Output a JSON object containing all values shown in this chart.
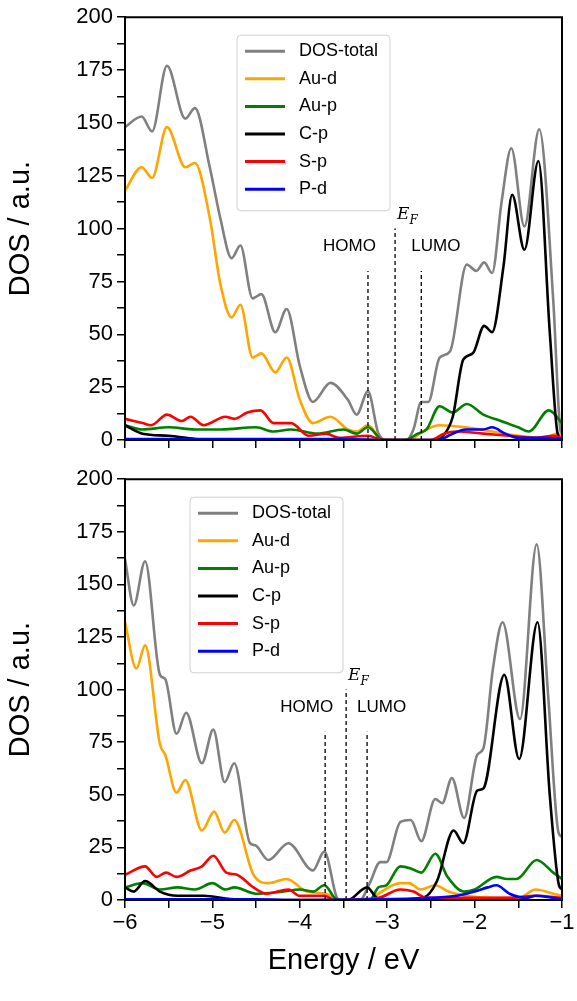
{
  "chart_data": [
    {
      "type": "line",
      "ylabel": "DOS / a.u.",
      "xlim": [
        -6,
        -1
      ],
      "ylim": [
        0,
        200
      ],
      "xticks": [
        -6,
        -5.5,
        -5,
        -4.5,
        -4,
        -3.5,
        -3,
        -2.5,
        -2,
        -1.5,
        -1
      ],
      "yticks": [
        0,
        {
          "value": 12.5,
          "label": null
        },
        25,
        {
          "value": 37.5,
          "label": null
        },
        50,
        {
          "value": 62.5,
          "label": null
        },
        75,
        {
          "value": 87.5,
          "label": null
        },
        100,
        {
          "value": 112.5,
          "label": null
        },
        125,
        {
          "value": 137.5,
          "label": null
        },
        150,
        {
          "value": 162.5,
          "label": null
        },
        175,
        {
          "value": 187.5,
          "label": null
        },
        200
      ],
      "tick_labels": "y",
      "grid": false,
      "legend": "top",
      "series": [
        {
          "name": "DOS-total",
          "color": "#808080",
          "x": [
            -6,
            -5.81,
            -5.69,
            -5.52,
            -5.31,
            -5.2,
            -5.03,
            -4.91,
            -4.78,
            -4.68,
            -4.54,
            -4.44,
            -4.28,
            -4.15,
            -4.0,
            -3.85,
            -3.65,
            -3.45,
            -3.35,
            -3.22,
            -3.1,
            -3.0,
            -2.78,
            -2.7,
            -2.61,
            -2.53,
            -2.4,
            -2.28,
            -2.09,
            -1.98,
            -1.89,
            -1.8,
            -1.69,
            -1.58,
            -1.43,
            -1.26,
            -1.1,
            -1.02,
            -1
          ],
          "values": [
            148,
            153,
            146,
            177,
            152,
            157,
            129,
            105,
            86,
            92,
            67,
            69,
            51,
            62,
            35,
            18,
            27,
            19,
            12,
            23,
            3,
            0,
            0,
            5,
            18,
            18,
            39,
            42,
            83,
            80,
            84,
            79,
            113,
            138,
            101,
            147,
            66,
            5,
            3
          ]
        },
        {
          "name": "Au-d",
          "color": "#ffa500",
          "x": [
            -6,
            -5.81,
            -5.69,
            -5.52,
            -5.31,
            -5.2,
            -5.03,
            -4.91,
            -4.78,
            -4.68,
            -4.54,
            -4.44,
            -4.28,
            -4.15,
            -4.0,
            -3.85,
            -3.65,
            -3.45,
            -3.35,
            -3.22,
            -3.05,
            -2.75,
            -2.6,
            -2.4,
            -2.1,
            -1.8,
            -1.5,
            -1.2,
            -1.05,
            -1
          ],
          "values": [
            118,
            129,
            124,
            148,
            129,
            131,
            105,
            74,
            58,
            64,
            39,
            41,
            32,
            39,
            19,
            8,
            11,
            5,
            4,
            7,
            0,
            0,
            4,
            7,
            6,
            4,
            2,
            1,
            3,
            2
          ]
        },
        {
          "name": "Au-p",
          "color": "#008000",
          "x": [
            -6,
            -5.8,
            -5.5,
            -5.2,
            -4.9,
            -4.5,
            -4.3,
            -4.1,
            -3.8,
            -3.5,
            -3.35,
            -3.22,
            -3.05,
            -2.8,
            -2.65,
            -2.55,
            -2.4,
            -2.25,
            -2.09,
            -1.9,
            -1.7,
            -1.5,
            -1.38,
            -1.15,
            -1
          ],
          "values": [
            7,
            5,
            6,
            5,
            5,
            6,
            4,
            5,
            3,
            5,
            3,
            6,
            0,
            0,
            3,
            5,
            16,
            13,
            17,
            12,
            9,
            6,
            4,
            14,
            8
          ]
        },
        {
          "name": "C-p",
          "color": "#000000",
          "x": [
            -6,
            -5.8,
            -5.5,
            -5.2,
            -4.8,
            -2.45,
            -2.36,
            -2.25,
            -2.13,
            -2.02,
            -1.89,
            -1.8,
            -1.67,
            -1.57,
            -1.43,
            -1.27,
            -1.14,
            -1.05,
            -1
          ],
          "values": [
            7,
            3,
            2,
            0.5,
            0,
            0,
            2,
            11,
            38,
            41,
            54,
            51,
            82,
            116,
            90,
            132,
            51,
            3,
            0
          ]
        },
        {
          "name": "S-p",
          "color": "#ff0000",
          "x": [
            -6,
            -5.8,
            -5.7,
            -5.52,
            -5.35,
            -5.25,
            -5.1,
            -4.85,
            -4.75,
            -4.6,
            -4.45,
            -4.3,
            -4.1,
            -3.9,
            -3.7,
            -3.55,
            -3.22,
            -3.05,
            -2.5,
            -2.35,
            -2.2,
            -1.9,
            -1.6,
            -1.3,
            -1.1,
            -1
          ],
          "values": [
            10,
            8,
            7,
            12,
            9,
            11,
            7,
            11,
            10,
            13,
            14,
            8,
            8,
            2,
            3,
            1,
            2,
            0,
            0,
            3,
            4,
            3,
            2,
            1,
            2,
            1
          ]
        },
        {
          "name": "P-d",
          "color": "#0000ff",
          "x": [
            -6,
            -3.5,
            -3.0,
            -2.4,
            -2.3,
            -2.1,
            -1.9,
            -1.8,
            -1.65,
            -1.5,
            -1.2,
            -1
          ],
          "values": [
            0.5,
            0.5,
            0,
            0,
            2,
            5,
            5,
            6,
            3,
            1,
            1,
            0.5
          ]
        }
      ],
      "ref_lines": [
        {
          "axis": "x",
          "value": -3.22,
          "label": "HOMO",
          "color": "#000000",
          "line_style": "dashed"
        },
        {
          "axis": "x",
          "value": -2.91,
          "label": "E$_{F}$",
          "color": "#000000",
          "line_style": "dashed"
        },
        {
          "axis": "x",
          "value": -2.61,
          "label": "LUMO",
          "color": "#000000",
          "line_style": "dashed"
        }
      ]
    },
    {
      "type": "line",
      "xlabel": "Energy / eV",
      "ylabel": "DOS / a.u.",
      "xlim": [
        -6,
        -1
      ],
      "ylim": [
        0,
        200
      ],
      "xticks": [
        {
          "value": -6,
          "label": "−6"
        },
        {
          "value": -5.5,
          "label": null
        },
        {
          "value": -5,
          "label": "−5"
        },
        {
          "value": -4.5,
          "label": null
        },
        {
          "value": -4,
          "label": "−4"
        },
        {
          "value": -3.5,
          "label": null
        },
        {
          "value": -3,
          "label": "−3"
        },
        {
          "value": -2.5,
          "label": null
        },
        {
          "value": -2,
          "label": "−2"
        },
        {
          "value": -1.5,
          "label": null
        },
        {
          "value": -1,
          "label": "−1"
        }
      ],
      "yticks": [
        0,
        {
          "value": 12.5,
          "label": null
        },
        25,
        {
          "value": 37.5,
          "label": null
        },
        50,
        {
          "value": 62.5,
          "label": null
        },
        75,
        {
          "value": 87.5,
          "label": null
        },
        100,
        {
          "value": 112.5,
          "label": null
        },
        125,
        {
          "value": 137.5,
          "label": null
        },
        150,
        {
          "value": 162.5,
          "label": null
        },
        175,
        {
          "value": 187.5,
          "label": null
        },
        200
      ],
      "grid": false,
      "legend": "top left",
      "series": [
        {
          "name": "DOS-total",
          "color": "#808080",
          "x": [
            -6,
            -5.9,
            -5.77,
            -5.6,
            -5.54,
            -5.41,
            -5.3,
            -5.12,
            -4.99,
            -4.86,
            -4.75,
            -4.57,
            -4.51,
            -4.36,
            -4.13,
            -3.85,
            -3.72,
            -3.58,
            -3.55,
            -3.31,
            -3.2,
            -3.08,
            -3.01,
            -2.85,
            -2.73,
            -2.61,
            -2.45,
            -2.37,
            -2.26,
            -2.12,
            -1.97,
            -1.9,
            -1.79,
            -1.68,
            -1.48,
            -1.29,
            -1.16,
            -1.04,
            -1
          ],
          "values": [
            162,
            140,
            161,
            107,
            105,
            79,
            89,
            65,
            81,
            56,
            65,
            27,
            26,
            19,
            27,
            14,
            23,
            1.5,
            0,
            0,
            8,
            18,
            18,
            37,
            38,
            28,
            48,
            46,
            58,
            39,
            69,
            72,
            110,
            132,
            86,
            169,
            98,
            32,
            30
          ]
        },
        {
          "name": "Au-d",
          "color": "#ffa500",
          "x": [
            -6,
            -5.87,
            -5.77,
            -5.6,
            -5.54,
            -5.41,
            -5.31,
            -5.12,
            -4.98,
            -4.86,
            -4.75,
            -4.53,
            -4.36,
            -4.15,
            -3.92,
            -3.7,
            -3.55,
            -3.2,
            -3.1,
            -2.85,
            -2.75,
            -2.62,
            -2.45,
            -2.3,
            -2.1,
            -1.8,
            -1.5,
            -1.3,
            -1.1,
            -1
          ],
          "values": [
            132,
            110,
            121,
            74,
            69,
            51,
            57,
            33,
            42,
            32,
            38,
            12,
            8,
            10,
            4,
            3,
            0,
            0,
            3,
            8,
            8,
            5,
            7,
            4,
            2,
            1,
            1,
            5,
            3,
            2
          ]
        },
        {
          "name": "Au-p",
          "color": "#008000",
          "x": [
            -6,
            -5.8,
            -5.6,
            -5.4,
            -5.2,
            -5.0,
            -4.85,
            -4.75,
            -4.5,
            -4.2,
            -4.0,
            -3.85,
            -3.72,
            -3.6,
            -3.55,
            -3.2,
            -3.1,
            -3.01,
            -2.85,
            -2.73,
            -2.61,
            -2.45,
            -2.31,
            -2.12,
            -2.0,
            -1.75,
            -1.63,
            -1.52,
            -1.29,
            -1.1,
            -1
          ],
          "values": [
            6,
            8,
            5,
            6,
            5,
            8,
            5,
            6,
            3,
            4,
            5,
            4,
            7,
            1,
            0,
            0,
            6,
            7,
            16,
            15,
            13,
            22,
            11,
            4,
            5,
            11,
            10,
            10,
            19,
            13,
            10
          ]
        },
        {
          "name": "C-p",
          "color": "#000000",
          "x": [
            -6,
            -5.9,
            -5.77,
            -5.6,
            -5.4,
            -5.1,
            -4.8,
            -4.5,
            -3.45,
            -3.23,
            -3.12,
            -3.0,
            -2.59,
            -2.43,
            -2.24,
            -2.13,
            -1.97,
            -1.9,
            -1.66,
            -1.49,
            -1.28,
            -1.14,
            -1.04,
            -1
          ],
          "values": [
            6,
            4,
            9,
            4,
            2,
            2,
            0.5,
            0,
            0,
            6,
            1,
            0,
            1,
            9,
            33,
            27,
            52,
            53,
            107,
            67,
            132,
            50,
            8,
            5
          ]
        },
        {
          "name": "S-p",
          "color": "#ff0000",
          "x": [
            -6,
            -5.77,
            -5.64,
            -5.53,
            -5.41,
            -5.25,
            -5.12,
            -4.99,
            -4.84,
            -4.72,
            -4.53,
            -4.38,
            -4.13,
            -4.0,
            -3.72,
            -3.6,
            -3.1,
            -2.85,
            -2.7,
            -2.55,
            -2.3,
            -2.0,
            -1.6,
            -1.3,
            -1
          ],
          "values": [
            12,
            16,
            11,
            13,
            11,
            14,
            16,
            21,
            13,
            12,
            6,
            3,
            5,
            2,
            2,
            0,
            1,
            5,
            4,
            1,
            1,
            1,
            1,
            2,
            1
          ]
        },
        {
          "name": "P-d",
          "color": "#0000ff",
          "x": [
            -6,
            -4.5,
            -4.0,
            -2.5,
            -2.2,
            -2.0,
            -1.85,
            -1.75,
            -1.6,
            -1.4,
            -1.3,
            -1.1,
            -1
          ],
          "values": [
            0.3,
            0.3,
            0,
            1,
            2,
            4,
            6,
            7,
            3,
            1,
            2,
            1,
            0.5
          ]
        }
      ],
      "ref_lines": [
        {
          "axis": "x",
          "value": -3.71,
          "label": "HOMO",
          "color": "#000000",
          "line_style": "dashed"
        },
        {
          "axis": "x",
          "value": -3.47,
          "label": "E$_{F}$",
          "color": "#000000",
          "line_style": "dashed"
        },
        {
          "axis": "x",
          "value": -3.23,
          "label": "LUMO",
          "color": "#000000",
          "line_style": "dashed"
        }
      ]
    }
  ]
}
